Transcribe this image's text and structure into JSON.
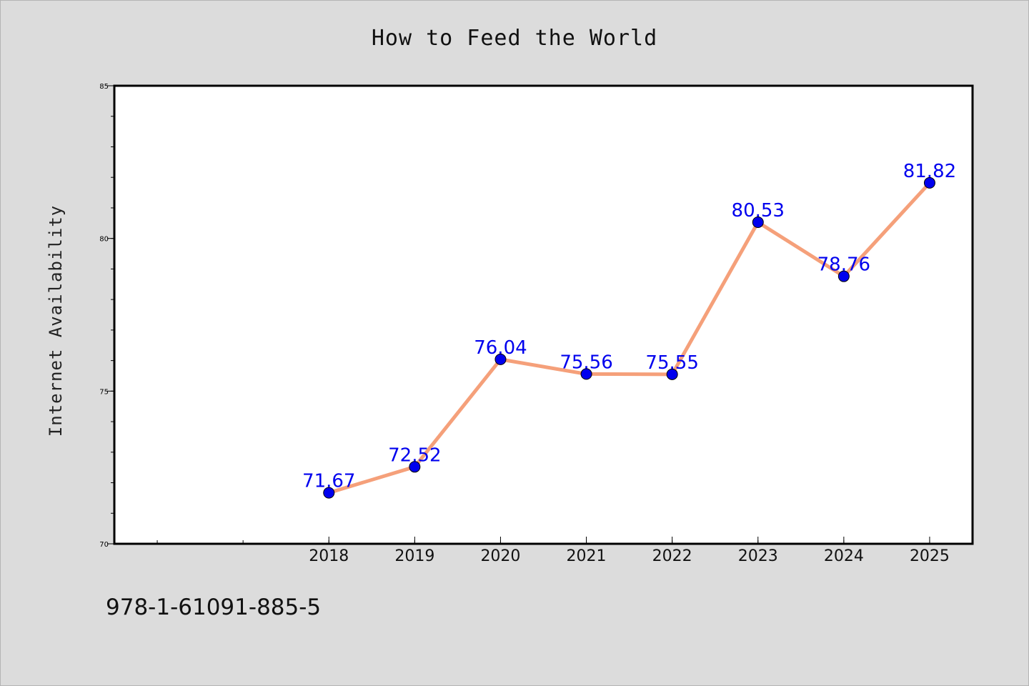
{
  "chart_data": {
    "type": "line",
    "title": "How to Feed the World",
    "xlabel": "",
    "ylabel": "Internet Availability",
    "x": [
      2018,
      2019,
      2020,
      2021,
      2022,
      2023,
      2024,
      2025
    ],
    "values": [
      71.67,
      72.52,
      76.04,
      75.56,
      75.55,
      80.53,
      78.76,
      81.82
    ],
    "data_labels": [
      "71.67",
      "72.52",
      "76.04",
      "75.56",
      "75.55",
      "80.53",
      "78.76",
      "81.82"
    ],
    "x_ticks": [
      "2018",
      "2019",
      "2020",
      "2021",
      "2022",
      "2023",
      "2024",
      "2025"
    ],
    "y_ticks": [
      "70",
      "75",
      "80",
      "85"
    ],
    "ylim": [
      70,
      85
    ],
    "xlim": [
      2015.5,
      2025.5
    ],
    "grid": false,
    "colors": {
      "line": "#f5a07a",
      "marker": "#0000ee",
      "label": "#0000ee",
      "background": "#dcdcdc",
      "plot": "#ffffff"
    }
  },
  "footer": {
    "isbn": "978-1-61091-885-5"
  }
}
